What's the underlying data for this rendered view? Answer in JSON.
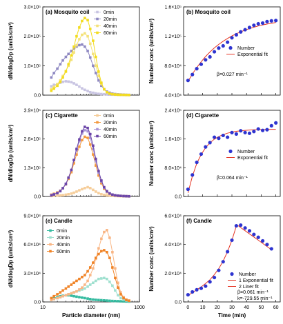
{
  "figure": {
    "xlabel_left": "Particle diameter (nm)",
    "xlabel_right": "Time (min)"
  },
  "colors": {
    "mosquito": [
      "#c8c4e2",
      "#8e88c2",
      "#f4e27a",
      "#f3dc1e"
    ],
    "cigarette": [
      "#f6ce9b",
      "#f39a3f",
      "#a996d6",
      "#6b45a8"
    ],
    "candle": [
      "#35bba0",
      "#9fe0cf",
      "#f9b685",
      "#f08326"
    ],
    "number_point": "#2e34d0",
    "fit": "#e53423"
  },
  "chart_data": [
    {
      "id": "a",
      "type": "line",
      "title": "(a) Mosquito coil",
      "xlabel": "",
      "ylabel": "dN/dlogDp (units/cm³)",
      "xscale": "log",
      "xlim": [
        10,
        1000
      ],
      "ylim": [
        0,
        300000
      ],
      "yticks": [
        "0.0",
        "1.0×10⁵",
        "2.0×10⁵",
        "3.0×10⁵"
      ],
      "ytick_values": [
        0,
        100000,
        200000,
        300000
      ],
      "xticks": [],
      "legend": "top-right",
      "x": [
        15,
        17,
        20,
        23,
        26,
        30,
        34,
        39,
        44,
        50,
        57,
        65,
        74,
        85,
        96,
        110,
        125,
        143,
        163,
        186,
        212,
        242,
        276,
        315,
        360,
        410,
        470,
        535,
        610
      ],
      "series": [
        {
          "name": "0min",
          "values": [
            30000,
            35000,
            38000,
            42000,
            45000,
            47000,
            46000,
            44000,
            40000,
            35000,
            29000,
            23000,
            18000,
            14000,
            10000,
            8000,
            6000,
            4500,
            3500,
            3000,
            2500,
            2000,
            1800,
            1500,
            1200,
            1000,
            800,
            600,
            500
          ]
        },
        {
          "name": "20min",
          "values": [
            60000,
            75000,
            90000,
            105000,
            118000,
            130000,
            140000,
            150000,
            158000,
            165000,
            170000,
            172000,
            165000,
            150000,
            128000,
            100000,
            75000,
            50000,
            32000,
            20000,
            12000,
            8000,
            5000,
            3500,
            2500,
            2000,
            1500,
            1000,
            800
          ]
        },
        {
          "name": "40min",
          "values": [
            20000,
            28000,
            38000,
            50000,
            65000,
            82000,
            100000,
            120000,
            145000,
            170000,
            190000,
            205000,
            210000,
            200000,
            175000,
            140000,
            100000,
            65000,
            38000,
            20000,
            10000,
            5000,
            3000,
            2000,
            1500,
            1000,
            800,
            600,
            500
          ]
        },
        {
          "name": "60min",
          "values": [
            15000,
            22000,
            32000,
            45000,
            60000,
            80000,
            105000,
            135000,
            165000,
            200000,
            230000,
            252000,
            262000,
            255000,
            225000,
            185000,
            130000,
            80000,
            42000,
            20000,
            10000,
            5000,
            3000,
            2000,
            1500,
            1000,
            800,
            600,
            500
          ]
        }
      ]
    },
    {
      "id": "b",
      "type": "scatter",
      "title": "(b) Mosquito coil",
      "xlabel": "",
      "ylabel": "Number conc (units/cm³)",
      "xlim": [
        -3,
        63
      ],
      "ylim": [
        40000,
        160000
      ],
      "yticks": [
        "4.0×10⁴",
        "8.0×10⁴",
        "1.2×10⁵",
        "1.6×10⁵"
      ],
      "ytick_values": [
        40000,
        80000,
        120000,
        160000
      ],
      "xticks": [],
      "legend": "center-right",
      "annotation": "β=0.027 min⁻¹",
      "x": [
        0,
        3,
        6,
        9,
        12,
        15,
        18,
        21,
        24,
        27,
        30,
        33,
        36,
        39,
        42,
        45,
        48,
        51,
        54,
        57,
        60
      ],
      "series": [
        {
          "name": "Number",
          "values": [
            60000,
            68000,
            76000,
            82000,
            88000,
            92000,
            99000,
            104000,
            107000,
            112000,
            118000,
            122000,
            126000,
            129000,
            132000,
            135000,
            137000,
            138000,
            140000,
            141000,
            141500
          ]
        },
        {
          "name": "Exponential fit",
          "values": [
            58500,
            68700,
            77600,
            85500,
            92500,
            98700,
            104200,
            109000,
            113300,
            117100,
            120500,
            123500,
            126100,
            128500,
            130500,
            132300,
            134000,
            135400,
            136700,
            137800,
            138800
          ]
        }
      ]
    },
    {
      "id": "c",
      "type": "line",
      "title": "(c) Cigarette",
      "xlabel": "",
      "ylabel": "dN/dlogDp (units/cm³)",
      "xscale": "log",
      "xlim": [
        10,
        1000
      ],
      "ylim": [
        0,
        390000
      ],
      "yticks": [
        "0.0",
        "1.3×10⁵",
        "2.6×10⁵",
        "3.9×10⁵"
      ],
      "ytick_values": [
        0,
        130000,
        260000,
        390000
      ],
      "xticks": [],
      "legend": "top-right",
      "x": [
        15,
        17,
        20,
        23,
        26,
        30,
        34,
        39,
        44,
        50,
        57,
        65,
        74,
        85,
        96,
        110,
        125,
        143,
        163,
        186,
        212,
        242,
        276,
        315,
        360,
        410,
        470,
        535,
        610
      ],
      "series": [
        {
          "name": "0min",
          "values": [
            2000,
            3000,
            4000,
            5000,
            6000,
            8000,
            10000,
            13000,
            17000,
            22000,
            28000,
            33000,
            38000,
            42000,
            38000,
            30000,
            22000,
            15000,
            10000,
            7000,
            5000,
            3500,
            2500,
            2000,
            1500,
            1000,
            800,
            600,
            500
          ]
        },
        {
          "name": "20min",
          "values": [
            8000,
            12000,
            18000,
            26000,
            38000,
            55000,
            80000,
            110000,
            150000,
            190000,
            225000,
            255000,
            270000,
            265000,
            235000,
            190000,
            140000,
            95000,
            60000,
            35000,
            20000,
            12000,
            8000,
            5000,
            3500,
            2500,
            1800,
            1200,
            800
          ]
        },
        {
          "name": "40min",
          "values": [
            6000,
            10000,
            16000,
            25000,
            38000,
            58000,
            85000,
            120000,
            165000,
            210000,
            250000,
            285000,
            300000,
            295000,
            265000,
            215000,
            160000,
            108000,
            68000,
            40000,
            22000,
            13000,
            8000,
            5000,
            3500,
            2500,
            1800,
            1200,
            800
          ]
        },
        {
          "name": "60min",
          "values": [
            5000,
            9000,
            15000,
            24000,
            37000,
            56000,
            85000,
            120000,
            165000,
            215000,
            258000,
            295000,
            315000,
            310000,
            282000,
            230000,
            170000,
            115000,
            72000,
            42000,
            24000,
            14000,
            8500,
            5500,
            3800,
            2600,
            1800,
            1200,
            800
          ]
        }
      ]
    },
    {
      "id": "d",
      "type": "scatter",
      "title": "(d) Cigarette",
      "xlabel": "",
      "ylabel": "Number conc (units/cm³)",
      "xlim": [
        -3,
        63
      ],
      "ylim": [
        0,
        240000
      ],
      "yticks": [
        "0.0",
        "8.0×10⁴",
        "1.6×10⁵",
        "2.4×10⁵"
      ],
      "ytick_values": [
        0,
        80000,
        160000,
        240000
      ],
      "xticks": [],
      "legend": "center-right",
      "annotation": "β=0.064 min⁻¹",
      "x": [
        0,
        3,
        6,
        9,
        12,
        15,
        18,
        21,
        24,
        27,
        30,
        33,
        36,
        39,
        42,
        45,
        48,
        51,
        54,
        57,
        60
      ],
      "series": [
        {
          "name": "Number",
          "values": [
            20000,
            60000,
            95000,
            118000,
            138000,
            150000,
            165000,
            162000,
            170000,
            165000,
            178000,
            174000,
            183000,
            178000,
            176000,
            181000,
            188000,
            184000,
            186000,
            197000,
            205000
          ]
        },
        {
          "name": "Exponential fit",
          "values": [
            10000,
            56300,
            92000,
            117200,
            135800,
            149500,
            159500,
            166900,
            172300,
            176300,
            179300,
            181500,
            183000,
            184200,
            185100,
            185700,
            186200,
            186500,
            186800,
            187000,
            187100
          ]
        }
      ]
    },
    {
      "id": "e",
      "type": "line",
      "title": "(e) Candle",
      "xlabel": "Particle diameter (nm)",
      "ylabel": "dN/dlogDp (units/cm³)",
      "xscale": "log",
      "xlim": [
        10,
        1000
      ],
      "ylim": [
        0,
        90000
      ],
      "yticks": [
        "0.0",
        "3.0×10⁴",
        "6.0×10⁴",
        "9.0×10⁴"
      ],
      "ytick_values": [
        0,
        30000,
        60000,
        90000
      ],
      "xticks": [
        "10",
        "100",
        "1000"
      ],
      "xtick_values": [
        10,
        100,
        1000
      ],
      "legend": "top-left",
      "x": [
        15,
        17,
        20,
        23,
        26,
        30,
        34,
        39,
        44,
        50,
        57,
        65,
        74,
        85,
        96,
        110,
        125,
        143,
        163,
        186,
        212,
        242,
        276,
        315,
        360,
        410,
        470,
        535,
        610
      ],
      "series": [
        {
          "name": "0min",
          "values": [
            3000,
            4000,
            5000,
            6000,
            6500,
            7000,
            7000,
            6500,
            6000,
            5500,
            5000,
            4500,
            4000,
            3500,
            3000,
            2500,
            2200,
            2000,
            1800,
            1600,
            1400,
            1200,
            1000,
            900,
            800,
            700,
            600,
            500,
            400
          ]
        },
        {
          "name": "20min",
          "values": [
            2000,
            3000,
            4000,
            5000,
            6000,
            7000,
            8000,
            9000,
            10000,
            11000,
            12000,
            13000,
            14000,
            16000,
            18000,
            20000,
            22000,
            24000,
            24500,
            25000,
            24000,
            21000,
            17000,
            12000,
            7000,
            4000,
            2500,
            1500,
            1000
          ]
        },
        {
          "name": "40min",
          "values": [
            2000,
            3000,
            4000,
            5000,
            6000,
            7000,
            8000,
            9000,
            10000,
            11000,
            13000,
            15000,
            18000,
            22000,
            28000,
            35000,
            45000,
            56000,
            66000,
            73000,
            75000,
            67000,
            52000,
            35000,
            20000,
            10000,
            5000,
            2500,
            1500
          ]
        },
        {
          "name": "60min",
          "values": [
            4000,
            6000,
            8000,
            10000,
            12000,
            14000,
            16000,
            18000,
            20000,
            22000,
            24000,
            26000,
            28000,
            32000,
            36000,
            41000,
            46000,
            50000,
            53000,
            54000,
            52000,
            46000,
            36000,
            25000,
            15000,
            8000,
            4000,
            2000,
            1200
          ]
        }
      ]
    },
    {
      "id": "f",
      "type": "scatter",
      "title": "(f) Candle",
      "xlabel": "Time (min)",
      "ylabel": "Number conc (units/cm³)",
      "xlim": [
        -3,
        63
      ],
      "ylim": [
        0,
        60000
      ],
      "yticks": [
        "0.0",
        "2.0×10⁴",
        "4.0×10⁴",
        "6.0×10⁴"
      ],
      "ytick_values": [
        0,
        20000,
        40000,
        60000
      ],
      "xticks": [
        "0",
        "10",
        "20",
        "30",
        "40",
        "50",
        "60"
      ],
      "xtick_values": [
        0,
        10,
        20,
        30,
        40,
        50,
        60
      ],
      "legend": "bottom-right",
      "annotation": "β=0.061 min⁻¹",
      "annotation2": "k=-729.55 min⁻¹",
      "x": [
        0,
        3,
        6,
        9,
        12,
        15,
        18,
        21,
        24,
        27,
        30,
        33,
        36,
        39,
        42,
        45,
        48,
        51,
        54,
        57
      ],
      "series": [
        {
          "name": "Number",
          "values": [
            5000,
            7000,
            8500,
            9500,
            11000,
            14000,
            17000,
            22000,
            28000,
            35000,
            43000,
            53000,
            53500,
            51500,
            49500,
            47000,
            45000,
            42500,
            40000,
            37000
          ]
        },
        {
          "name": "1 Exponential fit",
          "values": [
            4500,
            6500,
            8500,
            10500,
            12800,
            15500,
            19000,
            23200,
            28500,
            35000,
            43000,
            52800
          ]
        },
        {
          "name": "2 Liner fit",
          "x": [
            33,
            36,
            39,
            42,
            45,
            48,
            51,
            54,
            57
          ],
          "values": [
            54000,
            51800,
            49600,
            47400,
            45200,
            43000,
            40800,
            38600,
            36400
          ]
        }
      ]
    }
  ]
}
